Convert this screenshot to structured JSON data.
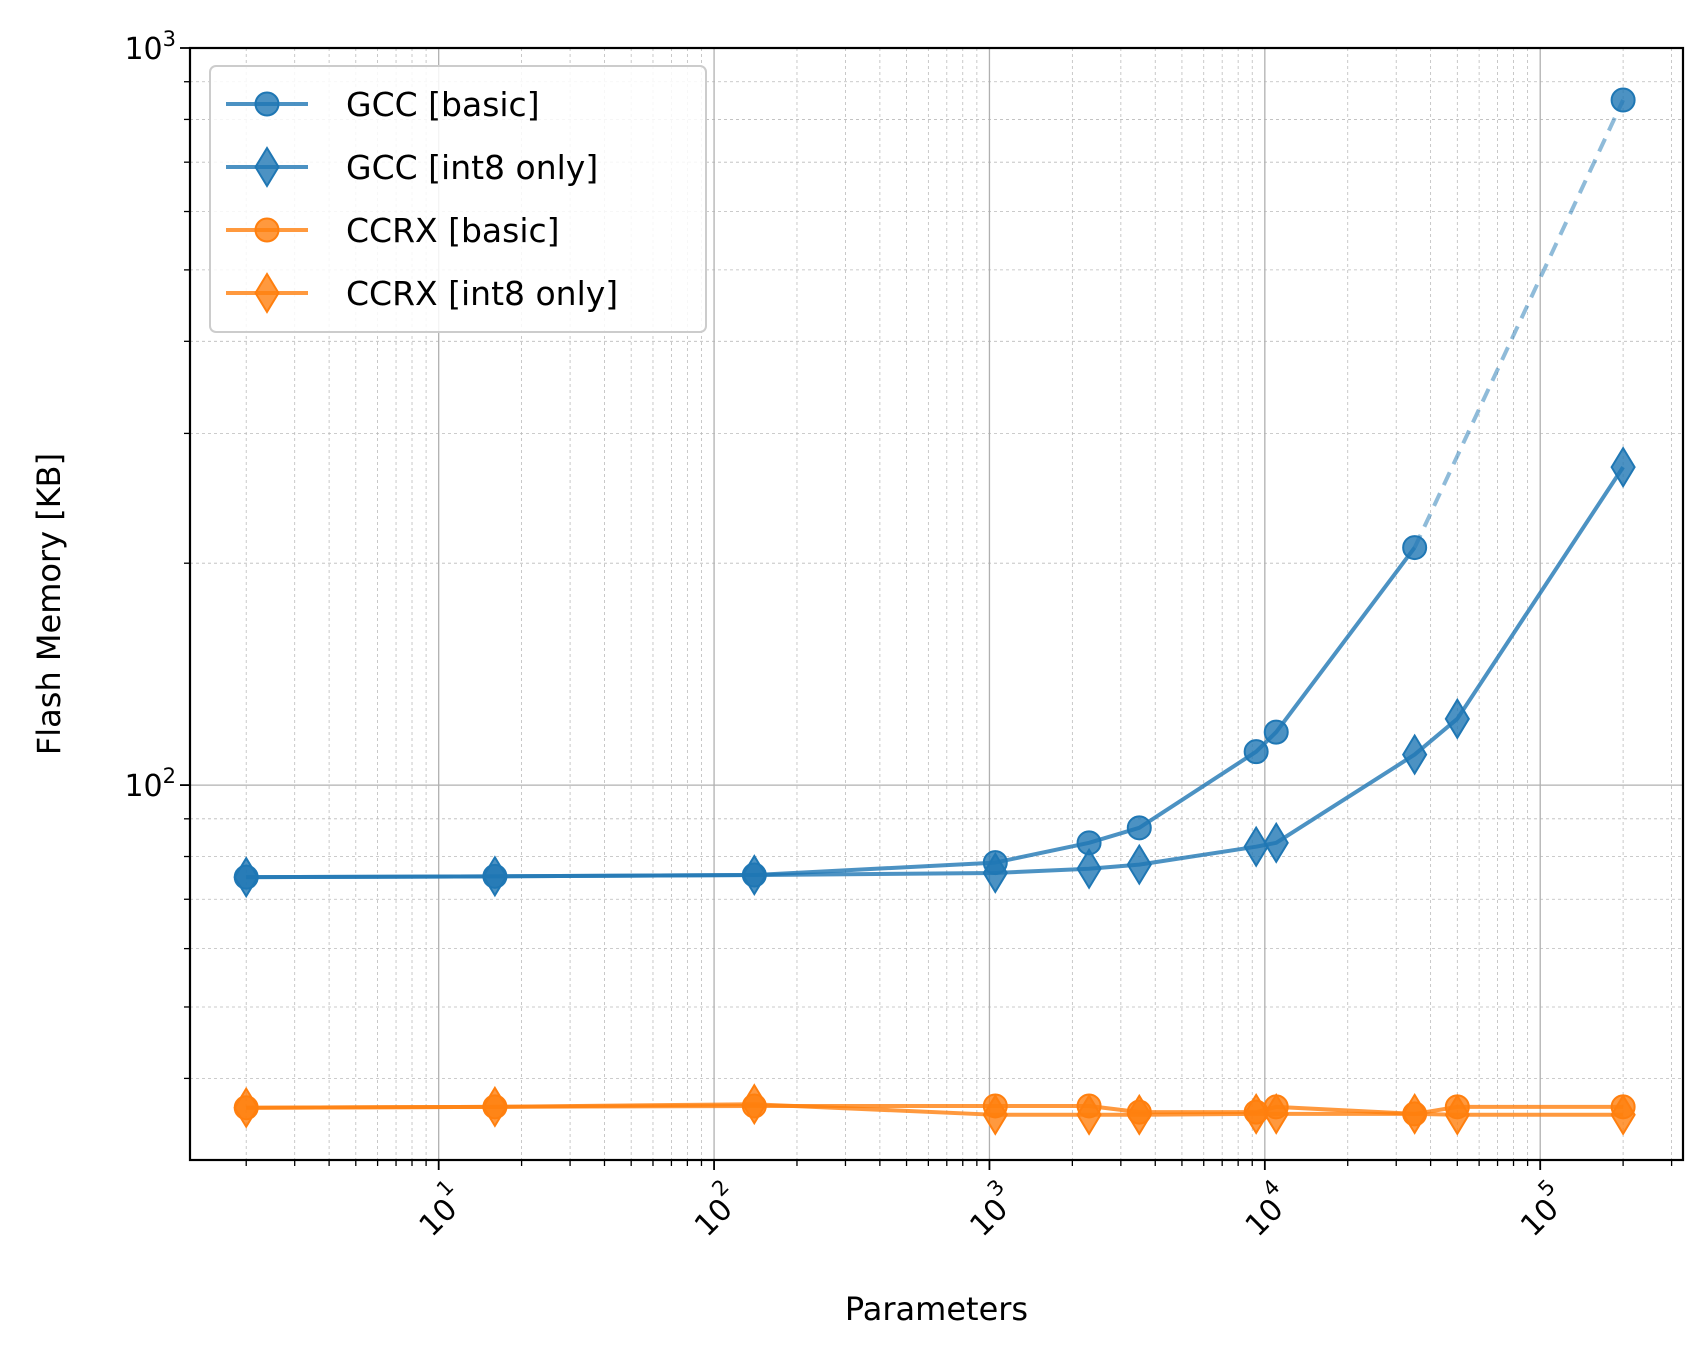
{
  "chart_data": {
    "type": "line",
    "title": "",
    "xlabel": "Parameters",
    "ylabel": "Flash Memory [KB]",
    "xscale": "log",
    "yscale": "log",
    "xlim": [
      1.25,
      330000
    ],
    "ylim": [
      31,
      1000
    ],
    "x_ticks": [
      {
        "value": 10,
        "base": "10",
        "exp": "1"
      },
      {
        "value": 100,
        "base": "10",
        "exp": "2"
      },
      {
        "value": 1000,
        "base": "10",
        "exp": "3"
      },
      {
        "value": 10000,
        "base": "10",
        "exp": "4"
      },
      {
        "value": 100000,
        "base": "10",
        "exp": "5"
      }
    ],
    "y_ticks": [
      {
        "value": 100,
        "base": "10",
        "exp": "2"
      },
      {
        "value": 1000,
        "base": "10",
        "exp": "3"
      }
    ],
    "grid": true,
    "legend_position": "top-left",
    "series": [
      {
        "name": "GCC [basic]",
        "color": "#1f77b4",
        "marker": "circle",
        "x": [
          2,
          16,
          140,
          1050,
          2300,
          3500,
          9300,
          11000,
          35000
        ],
        "y": [
          75,
          75.2,
          75.5,
          78.5,
          83.5,
          87.5,
          111,
          118,
          210
        ],
        "extrapolated": {
          "x": [
            35000,
            200000
          ],
          "y": [
            210,
            850
          ],
          "style": "dashed"
        }
      },
      {
        "name": "GCC [int8 only]",
        "color": "#1f77b4",
        "marker": "diamond",
        "x": [
          2,
          16,
          140,
          1050,
          2300,
          3500,
          9300,
          11000,
          35000,
          50000,
          200000
        ],
        "y": [
          75,
          75.2,
          75.5,
          76,
          77,
          78,
          82.5,
          83.5,
          110,
          123,
          270
        ]
      },
      {
        "name": "CCRX [basic]",
        "color": "#ff7f0e",
        "marker": "circle",
        "x": [
          2,
          16,
          140,
          1050,
          2300,
          3500,
          9300,
          11000,
          35000,
          50000,
          200000
        ],
        "y": [
          36.5,
          36.6,
          36.7,
          36.7,
          36.7,
          36,
          36,
          36.6,
          35.8,
          36.6,
          36.6
        ]
      },
      {
        "name": "CCRX [int8 only]",
        "color": "#ff7f0e",
        "marker": "diamond",
        "x": [
          2,
          16,
          140,
          1050,
          2300,
          3500,
          9300,
          11000,
          35000,
          50000,
          200000
        ],
        "y": [
          36.5,
          36.6,
          36.9,
          35.7,
          35.7,
          35.7,
          35.8,
          35.8,
          35.8,
          35.7,
          35.7
        ]
      }
    ]
  }
}
